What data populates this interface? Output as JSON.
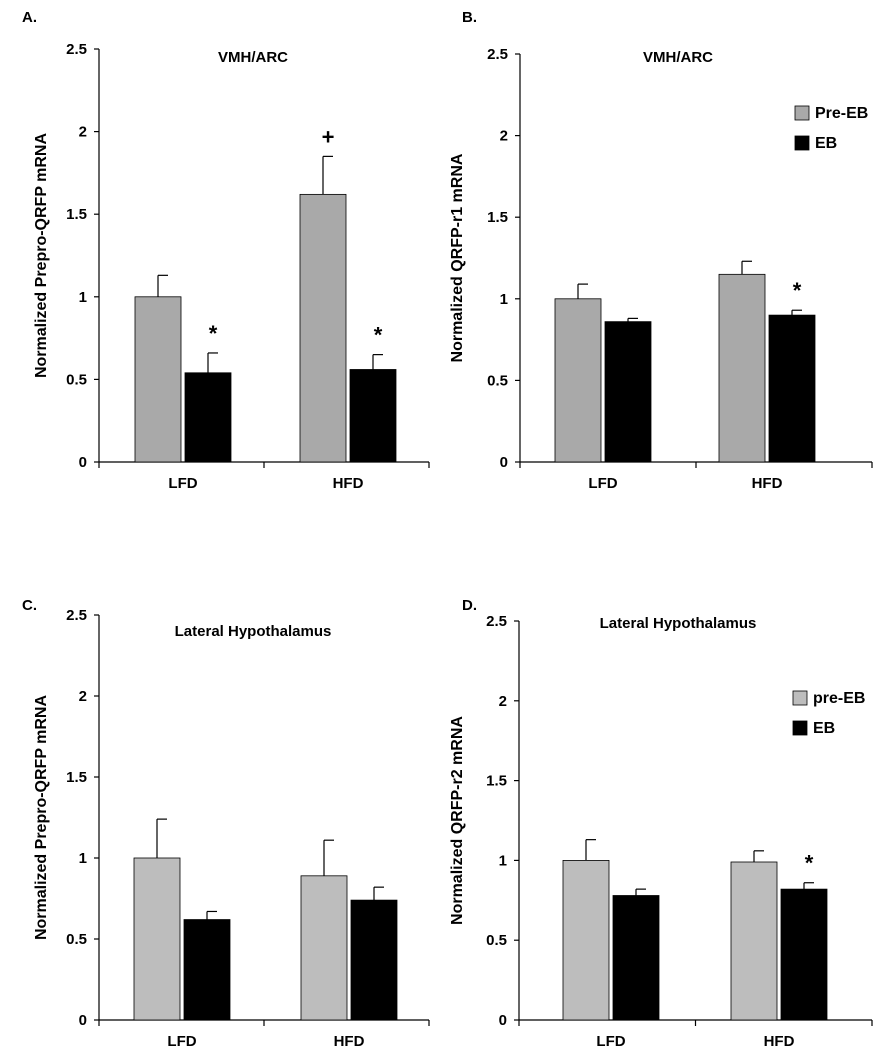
{
  "figure": {
    "background": "#ffffff"
  },
  "colors": {
    "pre_light": "#bdbdbd",
    "pre_mid": "#a9a9a9",
    "eb": "#000000",
    "axis": "#000000"
  },
  "chart_data": [
    {
      "id": "A",
      "panel_label": "A.",
      "type": "bar",
      "title": "VMH/ARC",
      "ylabel": "Normalized Prepro-QRFP mRNA",
      "xlabel": "",
      "ylim": [
        0,
        2.5
      ],
      "yticks": [
        "0",
        "0.5",
        "1",
        "1.5",
        "2",
        "2.5"
      ],
      "categories": [
        "LFD",
        "HFD"
      ],
      "series": [
        {
          "name": "Pre-EB",
          "color": "#a9a9a9",
          "values": [
            1.0,
            1.62
          ],
          "errors": [
            0.13,
            0.23
          ]
        },
        {
          "name": "EB",
          "color": "#000000",
          "values": [
            0.54,
            0.56
          ],
          "errors": [
            0.12,
            0.09
          ]
        }
      ],
      "annotations": [
        {
          "text": "*",
          "category": 0,
          "series": 1
        },
        {
          "text": "+",
          "category": 1,
          "series": 0
        },
        {
          "text": "*",
          "category": 1,
          "series": 1
        }
      ],
      "legend": null
    },
    {
      "id": "B",
      "panel_label": "B.",
      "type": "bar",
      "title": "VMH/ARC",
      "ylabel": "Normalized QRFP-r1 mRNA",
      "xlabel": "",
      "ylim": [
        0,
        2.5
      ],
      "yticks": [
        "0",
        "0.5",
        "1",
        "1.5",
        "2",
        "2.5"
      ],
      "categories": [
        "LFD",
        "HFD"
      ],
      "series": [
        {
          "name": "Pre-EB",
          "color": "#a9a9a9",
          "values": [
            1.0,
            1.15
          ],
          "errors": [
            0.09,
            0.08
          ]
        },
        {
          "name": "EB",
          "color": "#000000",
          "values": [
            0.86,
            0.9
          ],
          "errors": [
            0.02,
            0.03
          ]
        }
      ],
      "annotations": [
        {
          "text": "*",
          "category": 1,
          "series": 1
        }
      ],
      "legend": {
        "position": "right",
        "entries": [
          "Pre-EB",
          "EB"
        ]
      }
    },
    {
      "id": "C",
      "panel_label": "C.",
      "type": "bar",
      "title": "Lateral Hypothalamus",
      "ylabel": "Normalized Prepro-QRFP mRNA",
      "xlabel": "",
      "ylim": [
        0,
        2.5
      ],
      "yticks": [
        "0",
        "0.5",
        "1",
        "1.5",
        "2",
        "2.5"
      ],
      "categories": [
        "LFD",
        "HFD"
      ],
      "series": [
        {
          "name": "pre-EB",
          "color": "#bdbdbd",
          "values": [
            1.0,
            0.89
          ],
          "errors": [
            0.24,
            0.22
          ]
        },
        {
          "name": "EB",
          "color": "#000000",
          "values": [
            0.62,
            0.74
          ],
          "errors": [
            0.05,
            0.08
          ]
        }
      ],
      "annotations": [],
      "legend": null
    },
    {
      "id": "D",
      "panel_label": "D.",
      "type": "bar",
      "title": "Lateral Hypothalamus",
      "ylabel": "Normalized QRFP-r2 mRNA",
      "xlabel": "",
      "ylim": [
        0,
        2.5
      ],
      "yticks": [
        "0",
        "0.5",
        "1",
        "1.5",
        "2",
        "2.5"
      ],
      "categories": [
        "LFD",
        "HFD"
      ],
      "series": [
        {
          "name": "pre-EB",
          "color": "#bdbdbd",
          "values": [
            1.0,
            0.99
          ],
          "errors": [
            0.13,
            0.07
          ]
        },
        {
          "name": "EB",
          "color": "#000000",
          "values": [
            0.78,
            0.82
          ],
          "errors": [
            0.04,
            0.04
          ]
        }
      ],
      "annotations": [
        {
          "text": "*",
          "category": 1,
          "series": 1
        }
      ],
      "legend": {
        "position": "right",
        "entries": [
          "pre-EB",
          "EB"
        ]
      }
    }
  ]
}
